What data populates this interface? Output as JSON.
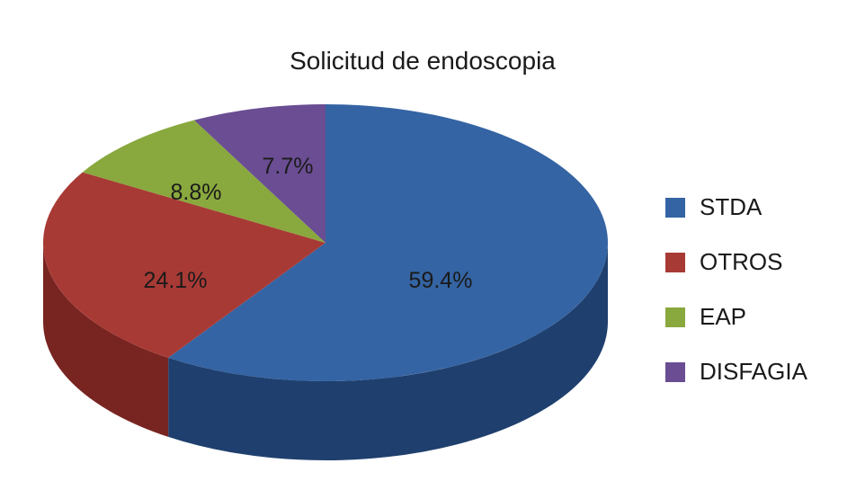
{
  "chart_data": {
    "type": "pie",
    "title": "Solicitud de endoscopia",
    "categories": [
      "STDA",
      "OTROS",
      "EAP",
      "DISFAGIA"
    ],
    "values": [
      59.4,
      24.1,
      8.8,
      7.7
    ],
    "value_labels": [
      "59.4%",
      "24.1%",
      "8.8%",
      "7.7%"
    ],
    "colors": [
      "#3464a3",
      "#a83a35",
      "#89a83e",
      "#6a4d93"
    ],
    "side_colors": [
      "#1f3f6e",
      "#782421",
      "#5a7028",
      "#45305f"
    ],
    "style": "3d-tilted",
    "legend_position": "right"
  }
}
